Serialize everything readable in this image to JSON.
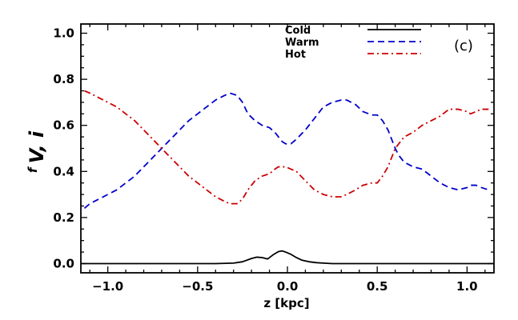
{
  "chart_data": {
    "type": "line",
    "panel_label": "(c)",
    "xlabel": "z [kpc]",
    "ylabel": "f",
    "ylabel_sub": "V, i",
    "xlim": [
      -1.15,
      1.15
    ],
    "ylim": [
      -0.04,
      1.04
    ],
    "x_ticks": [
      -1.0,
      -0.5,
      0.0,
      0.5,
      1.0
    ],
    "x_tick_labels": [
      "−1.0",
      "−0.5",
      "0.0",
      "0.5",
      "1.0"
    ],
    "y_ticks": [
      0.0,
      0.2,
      0.4,
      0.6,
      0.8,
      1.0
    ],
    "y_tick_labels": [
      "0.0",
      "0.2",
      "0.4",
      "0.6",
      "0.8",
      "1.0"
    ],
    "legend": [
      "Cold",
      "Warm",
      "Hot"
    ],
    "legend_position": "top-right",
    "series": [
      {
        "name": "Cold",
        "color": "#000000",
        "dash": "solid",
        "x": [
          -1.15,
          -0.4,
          -0.3,
          -0.25,
          -0.2,
          -0.17,
          -0.14,
          -0.11,
          -0.08,
          -0.05,
          -0.03,
          -0.01,
          0.02,
          0.05,
          0.08,
          0.12,
          0.16,
          0.2,
          0.25,
          0.35,
          1.15
        ],
        "y": [
          0.0,
          0.0,
          0.002,
          0.008,
          0.022,
          0.028,
          0.026,
          0.02,
          0.038,
          0.052,
          0.055,
          0.05,
          0.04,
          0.026,
          0.015,
          0.008,
          0.004,
          0.002,
          0.0,
          0.0,
          0.0
        ]
      },
      {
        "name": "Warm",
        "color": "#0000cc",
        "dash": "dashed",
        "x": [
          -1.13,
          -1.1,
          -1.05,
          -1.0,
          -0.95,
          -0.9,
          -0.85,
          -0.8,
          -0.75,
          -0.7,
          -0.65,
          -0.6,
          -0.55,
          -0.5,
          -0.45,
          -0.4,
          -0.35,
          -0.32,
          -0.28,
          -0.25,
          -0.22,
          -0.18,
          -0.14,
          -0.1,
          -0.07,
          -0.05,
          -0.03,
          -0.01,
          0.02,
          0.05,
          0.1,
          0.15,
          0.2,
          0.25,
          0.3,
          0.33,
          0.38,
          0.42,
          0.47,
          0.5,
          0.53,
          0.56,
          0.58,
          0.6,
          0.62,
          0.65,
          0.7,
          0.75,
          0.8,
          0.85,
          0.9,
          0.95,
          1.0,
          1.02,
          1.05,
          1.08,
          1.12
        ],
        "y": [
          0.24,
          0.26,
          0.28,
          0.3,
          0.32,
          0.35,
          0.38,
          0.42,
          0.46,
          0.5,
          0.54,
          0.58,
          0.62,
          0.65,
          0.68,
          0.71,
          0.73,
          0.74,
          0.73,
          0.7,
          0.65,
          0.62,
          0.6,
          0.59,
          0.57,
          0.55,
          0.53,
          0.52,
          0.52,
          0.54,
          0.58,
          0.63,
          0.68,
          0.7,
          0.71,
          0.71,
          0.69,
          0.66,
          0.645,
          0.645,
          0.62,
          0.58,
          0.54,
          0.5,
          0.47,
          0.44,
          0.42,
          0.41,
          0.38,
          0.35,
          0.33,
          0.32,
          0.33,
          0.34,
          0.34,
          0.33,
          0.32
        ]
      },
      {
        "name": "Hot",
        "color": "#cc0000",
        "dash": "dashdot",
        "x": [
          -1.13,
          -1.1,
          -1.05,
          -1.0,
          -0.95,
          -0.9,
          -0.85,
          -0.8,
          -0.75,
          -0.7,
          -0.65,
          -0.6,
          -0.55,
          -0.5,
          -0.45,
          -0.4,
          -0.35,
          -0.32,
          -0.28,
          -0.25,
          -0.22,
          -0.18,
          -0.14,
          -0.1,
          -0.07,
          -0.05,
          -0.03,
          -0.01,
          0.02,
          0.05,
          0.1,
          0.15,
          0.2,
          0.25,
          0.3,
          0.33,
          0.38,
          0.42,
          0.47,
          0.5,
          0.53,
          0.56,
          0.58,
          0.6,
          0.62,
          0.65,
          0.7,
          0.75,
          0.8,
          0.85,
          0.9,
          0.95,
          1.0,
          1.02,
          1.05,
          1.08,
          1.12
        ],
        "y": [
          0.75,
          0.74,
          0.72,
          0.7,
          0.68,
          0.65,
          0.62,
          0.58,
          0.54,
          0.5,
          0.46,
          0.42,
          0.38,
          0.35,
          0.32,
          0.29,
          0.27,
          0.26,
          0.26,
          0.28,
          0.32,
          0.36,
          0.38,
          0.39,
          0.41,
          0.42,
          0.42,
          0.42,
          0.41,
          0.4,
          0.36,
          0.32,
          0.3,
          0.29,
          0.29,
          0.3,
          0.32,
          0.34,
          0.35,
          0.35,
          0.38,
          0.42,
          0.46,
          0.5,
          0.52,
          0.55,
          0.57,
          0.6,
          0.62,
          0.64,
          0.67,
          0.67,
          0.66,
          0.65,
          0.66,
          0.67,
          0.67
        ]
      }
    ]
  }
}
